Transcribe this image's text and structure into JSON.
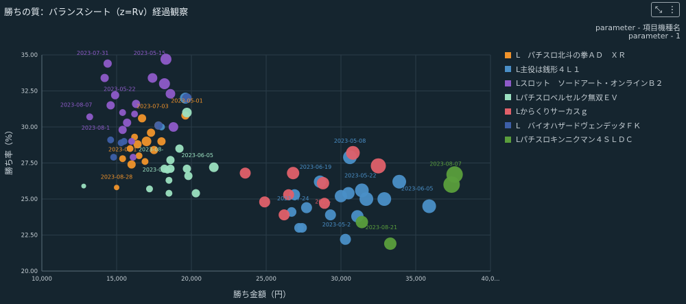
{
  "title": "勝ちの質：バランスシート（z=Rv）経過観察",
  "toolbar": {
    "collapse_icon": "⤡",
    "menu_icon": "⋮"
  },
  "params": {
    "line1": "parameter - 項目機種名",
    "line2": "parameter - 1"
  },
  "chart_data": {
    "type": "scatter",
    "title": "勝ちの質：バランスシート（z=Rv）経過観察",
    "xlabel": "勝ち金額（円）",
    "ylabel": "勝ち率（%）",
    "xlim": [
      10000,
      40000
    ],
    "ylim": [
      20,
      35
    ],
    "xticks": [
      "10,000",
      "15,000",
      "20,000",
      "25,000",
      "30,000",
      "35,000",
      "40,0..."
    ],
    "yticks": [
      "20.00",
      "22.50",
      "25.00",
      "27.50",
      "30.00",
      "32.50",
      "35.00"
    ],
    "grid": true,
    "legend_position": "right",
    "series": [
      {
        "name": "L　パチスロ北斗の拳ＡＤ　ＸＲ",
        "color": "#f0932b",
        "points": [
          {
            "x": 16700,
            "y": 30.6,
            "r": 6
          },
          {
            "x": 17300,
            "y": 29.6,
            "r": 6
          },
          {
            "x": 17800,
            "y": 30.1,
            "r": 6
          },
          {
            "x": 17000,
            "y": 29.0,
            "r": 7
          },
          {
            "x": 16400,
            "y": 28.8,
            "r": 6
          },
          {
            "x": 17500,
            "y": 28.4,
            "r": 6
          },
          {
            "x": 16200,
            "y": 29.3,
            "r": 5
          },
          {
            "x": 18000,
            "y": 29.0,
            "r": 6
          },
          {
            "x": 15900,
            "y": 28.5,
            "r": 5
          },
          {
            "x": 16900,
            "y": 27.6,
            "r": 5
          },
          {
            "x": 15400,
            "y": 27.8,
            "r": 5
          },
          {
            "x": 16000,
            "y": 27.4,
            "r": 6
          },
          {
            "x": 16500,
            "y": 28.0,
            "r": 5
          },
          {
            "x": 19600,
            "y": 30.8,
            "r": 6
          },
          {
            "x": 15000,
            "y": 25.8,
            "r": 4
          }
        ],
        "labels": [
          {
            "x": 17400,
            "y": 31.3,
            "text": "2023-07-03"
          },
          {
            "x": 19700,
            "y": 31.7,
            "text": "2023-05-01"
          },
          {
            "x": 15400,
            "y": 28.3,
            "text": "2023-07-1"
          },
          {
            "x": 15000,
            "y": 26.4,
            "text": "2023-08-28"
          }
        ]
      },
      {
        "name": "L主役は銭形４Ｌ１",
        "color": "#4a8fc7",
        "points": [
          {
            "x": 30600,
            "y": 27.9,
            "r": 10
          },
          {
            "x": 33900,
            "y": 26.2,
            "r": 10
          },
          {
            "x": 31400,
            "y": 25.6,
            "r": 10
          },
          {
            "x": 32900,
            "y": 25.0,
            "r": 10
          },
          {
            "x": 35900,
            "y": 24.5,
            "r": 10
          },
          {
            "x": 31700,
            "y": 25.0,
            "r": 10
          },
          {
            "x": 30000,
            "y": 25.2,
            "r": 9
          },
          {
            "x": 30500,
            "y": 25.4,
            "r": 9
          },
          {
            "x": 28600,
            "y": 26.2,
            "r": 9
          },
          {
            "x": 29300,
            "y": 23.9,
            "r": 8
          },
          {
            "x": 31100,
            "y": 23.8,
            "r": 9
          },
          {
            "x": 27700,
            "y": 24.4,
            "r": 8
          },
          {
            "x": 26900,
            "y": 25.3,
            "r": 8
          },
          {
            "x": 26700,
            "y": 24.1,
            "r": 7
          },
          {
            "x": 27400,
            "y": 23.0,
            "r": 7
          },
          {
            "x": 27200,
            "y": 23.0,
            "r": 7
          },
          {
            "x": 30300,
            "y": 22.2,
            "r": 8
          },
          {
            "x": 19600,
            "y": 32.0,
            "r": 8
          },
          {
            "x": 18000,
            "y": 30.0,
            "r": 5
          }
        ],
        "labels": [
          {
            "x": 30600,
            "y": 28.9,
            "text": "2023-05-08"
          },
          {
            "x": 28300,
            "y": 27.1,
            "text": "2023-06-19"
          },
          {
            "x": 31300,
            "y": 26.5,
            "text": "2023-05-22"
          },
          {
            "x": 35100,
            "y": 25.6,
            "text": "2023-06-05"
          },
          {
            "x": 26800,
            "y": 24.9,
            "text": "2023-07-24"
          },
          {
            "x": 29700,
            "y": 23.1,
            "text": "2023-05-2"
          }
        ]
      },
      {
        "name": "Lスロット　ソードアート・オンラインＢ２",
        "color": "#8e5bc9",
        "points": [
          {
            "x": 18300,
            "y": 34.7,
            "r": 8
          },
          {
            "x": 14400,
            "y": 34.4,
            "r": 6
          },
          {
            "x": 17400,
            "y": 33.4,
            "r": 7
          },
          {
            "x": 14200,
            "y": 33.4,
            "r": 6
          },
          {
            "x": 18200,
            "y": 33.0,
            "r": 8
          },
          {
            "x": 14900,
            "y": 32.2,
            "r": 6
          },
          {
            "x": 18600,
            "y": 32.3,
            "r": 7
          },
          {
            "x": 16300,
            "y": 31.6,
            "r": 6
          },
          {
            "x": 14600,
            "y": 31.5,
            "r": 6
          },
          {
            "x": 15400,
            "y": 31.0,
            "r": 5
          },
          {
            "x": 16200,
            "y": 30.9,
            "r": 5
          },
          {
            "x": 13200,
            "y": 30.7,
            "r": 5
          },
          {
            "x": 15700,
            "y": 30.3,
            "r": 6
          },
          {
            "x": 15400,
            "y": 29.8,
            "r": 6
          },
          {
            "x": 18800,
            "y": 30.0,
            "r": 7
          },
          {
            "x": 16000,
            "y": 29.0,
            "r": 5
          },
          {
            "x": 16100,
            "y": 27.9,
            "r": 5
          }
        ],
        "labels": [
          {
            "x": 13400,
            "y": 35.0,
            "text": "2023-07-31"
          },
          {
            "x": 17200,
            "y": 35.0,
            "text": "2023-05-15"
          },
          {
            "x": 15200,
            "y": 32.5,
            "text": "2023-05-22"
          },
          {
            "x": 12300,
            "y": 31.4,
            "text": "2023-08-07"
          },
          {
            "x": 13600,
            "y": 29.8,
            "text": "2023-08-1"
          }
        ]
      },
      {
        "name": "Lパチスロベルセルク無双ＥＶ",
        "color": "#9be0c0",
        "points": [
          {
            "x": 19700,
            "y": 31.0,
            "r": 7
          },
          {
            "x": 19200,
            "y": 28.5,
            "r": 6
          },
          {
            "x": 18600,
            "y": 27.7,
            "r": 6
          },
          {
            "x": 21500,
            "y": 27.2,
            "r": 7
          },
          {
            "x": 18200,
            "y": 27.1,
            "r": 6
          },
          {
            "x": 18600,
            "y": 27.1,
            "r": 6
          },
          {
            "x": 19700,
            "y": 27.1,
            "r": 6
          },
          {
            "x": 18400,
            "y": 27.0,
            "r": 5
          },
          {
            "x": 19800,
            "y": 26.6,
            "r": 6
          },
          {
            "x": 18500,
            "y": 26.3,
            "r": 5
          },
          {
            "x": 17200,
            "y": 25.7,
            "r": 5
          },
          {
            "x": 18500,
            "y": 25.4,
            "r": 5
          },
          {
            "x": 20300,
            "y": 25.4,
            "r": 6
          },
          {
            "x": 12800,
            "y": 25.9,
            "r": 3.5
          }
        ],
        "labels": [
          {
            "x": 20400,
            "y": 27.9,
            "text": "2023-06-05"
          },
          {
            "x": 17300,
            "y": 28.3,
            "text": "2023-08-"
          },
          {
            "x": 17800,
            "y": 26.9,
            "text": "2023-06-19"
          }
        ]
      },
      {
        "name": "Lからくりサーカスｇ",
        "color": "#e0606a",
        "points": [
          {
            "x": 30800,
            "y": 28.2,
            "r": 10
          },
          {
            "x": 32500,
            "y": 27.3,
            "r": 11
          },
          {
            "x": 26800,
            "y": 26.8,
            "r": 9
          },
          {
            "x": 23600,
            "y": 26.8,
            "r": 8
          },
          {
            "x": 28800,
            "y": 26.1,
            "r": 9
          },
          {
            "x": 26500,
            "y": 25.3,
            "r": 8
          },
          {
            "x": 24900,
            "y": 24.8,
            "r": 8
          },
          {
            "x": 28900,
            "y": 24.7,
            "r": 8
          },
          {
            "x": 26200,
            "y": 23.9,
            "r": 8
          }
        ],
        "labels": [
          {
            "x": 28800,
            "y": 24.7,
            "text": "2023-"
          }
        ]
      },
      {
        "name": "L　バイオハザードヴェンデッタＦＫ",
        "color": "#3d5fa8",
        "points": [
          {
            "x": 19700,
            "y": 32.0,
            "r": 7
          },
          {
            "x": 17800,
            "y": 30.1,
            "r": 6
          },
          {
            "x": 14600,
            "y": 29.1,
            "r": 5
          },
          {
            "x": 15500,
            "y": 29.0,
            "r": 5
          },
          {
            "x": 15300,
            "y": 28.9,
            "r": 5
          },
          {
            "x": 14800,
            "y": 27.9,
            "r": 5
          }
        ],
        "labels": []
      },
      {
        "name": "Lパチスロキンニクマン４ＳＬＤＣ",
        "color": "#5a9e3c",
        "points": [
          {
            "x": 37600,
            "y": 26.7,
            "r": 12
          },
          {
            "x": 37400,
            "y": 26.0,
            "r": 12
          },
          {
            "x": 31400,
            "y": 23.4,
            "r": 9
          },
          {
            "x": 33300,
            "y": 21.9,
            "r": 9
          }
        ],
        "labels": [
          {
            "x": 37000,
            "y": 27.3,
            "text": "2023-08-07"
          },
          {
            "x": 32700,
            "y": 22.9,
            "text": "2023-08-21"
          }
        ]
      }
    ]
  }
}
